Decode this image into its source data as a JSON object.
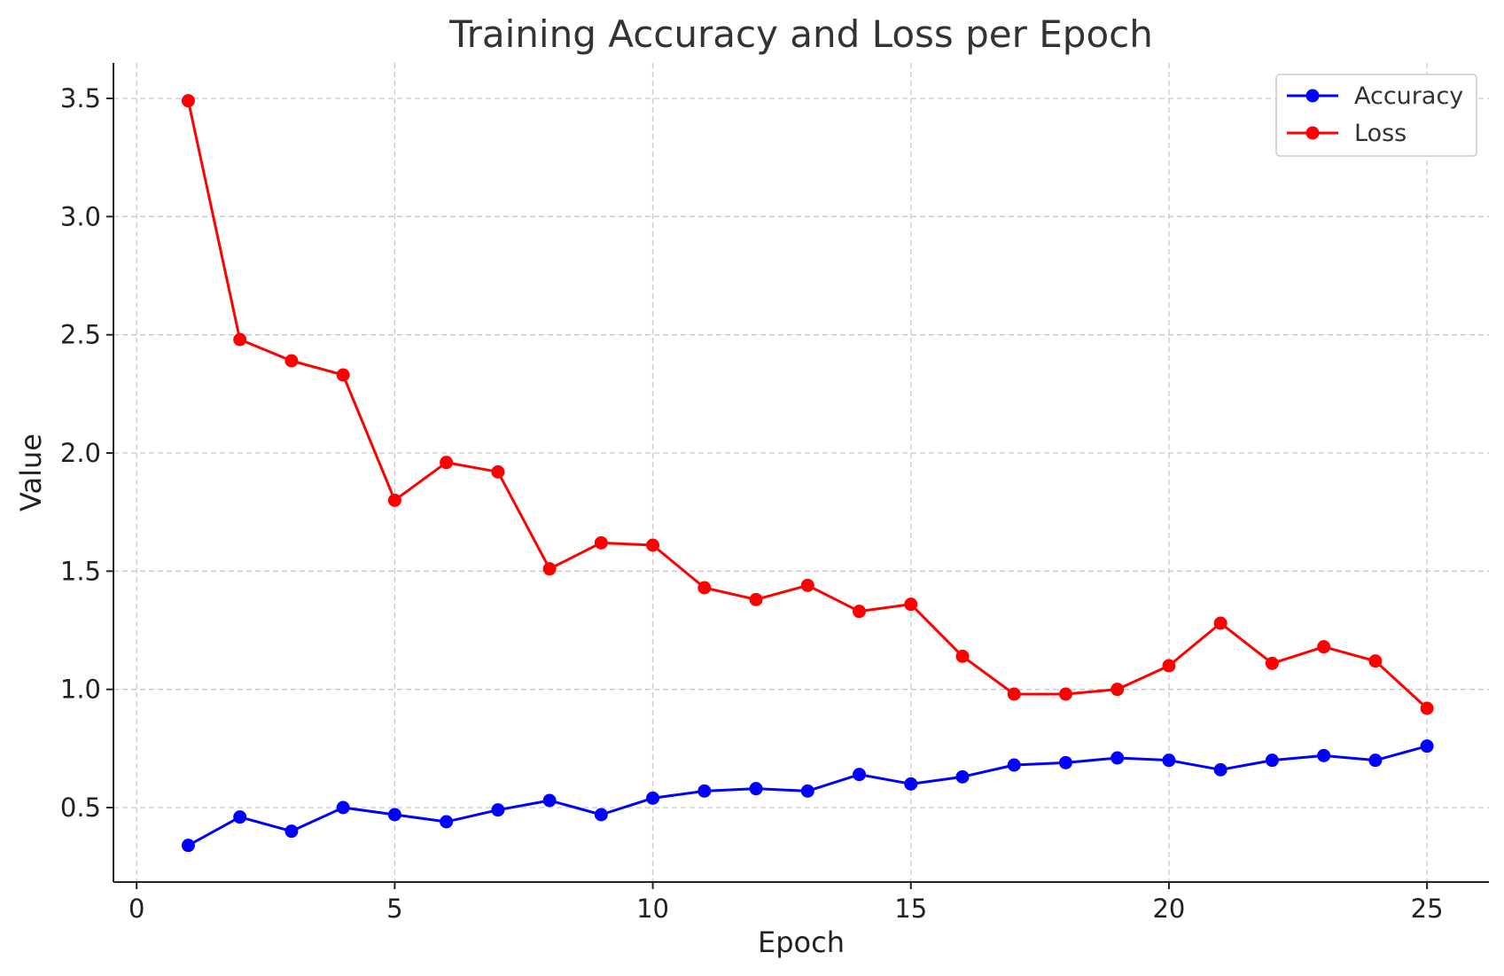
{
  "chart_data": {
    "type": "line",
    "title": "Training Accuracy and Loss per Epoch",
    "xlabel": "Epoch",
    "ylabel": "Value",
    "xlim": [
      -0.45,
      26.2
    ],
    "ylim": [
      0.185,
      3.65
    ],
    "xticks": [
      0,
      5,
      10,
      15,
      20,
      25
    ],
    "yticks": [
      0.5,
      1.0,
      1.5,
      2.0,
      2.5,
      3.0,
      3.5
    ],
    "xtick_labels": [
      "0",
      "5",
      "10",
      "15",
      "20",
      "25"
    ],
    "ytick_labels": [
      "0.5",
      "1.0",
      "1.5",
      "2.0",
      "2.5",
      "3.0",
      "3.5"
    ],
    "grid": true,
    "legend_position": "top-right",
    "x": [
      1,
      2,
      3,
      4,
      5,
      6,
      7,
      8,
      9,
      10,
      11,
      12,
      13,
      14,
      15,
      16,
      17,
      18,
      19,
      20,
      21,
      22,
      23,
      24,
      25
    ],
    "series": [
      {
        "name": "Accuracy",
        "color": "#0000ff",
        "values": [
          0.34,
          0.46,
          0.4,
          0.5,
          0.47,
          0.44,
          0.49,
          0.53,
          0.47,
          0.54,
          0.57,
          0.58,
          0.57,
          0.64,
          0.6,
          0.63,
          0.68,
          0.69,
          0.71,
          0.7,
          0.66,
          0.7,
          0.72,
          0.7,
          0.76
        ]
      },
      {
        "name": "Loss",
        "color": "#ff0000",
        "values": [
          3.49,
          2.48,
          2.39,
          2.33,
          1.8,
          1.96,
          1.92,
          1.51,
          1.62,
          1.61,
          1.43,
          1.38,
          1.44,
          1.33,
          1.36,
          1.14,
          0.98,
          0.98,
          1.0,
          1.1,
          1.28,
          1.11,
          1.18,
          1.12,
          0.92
        ]
      }
    ]
  }
}
